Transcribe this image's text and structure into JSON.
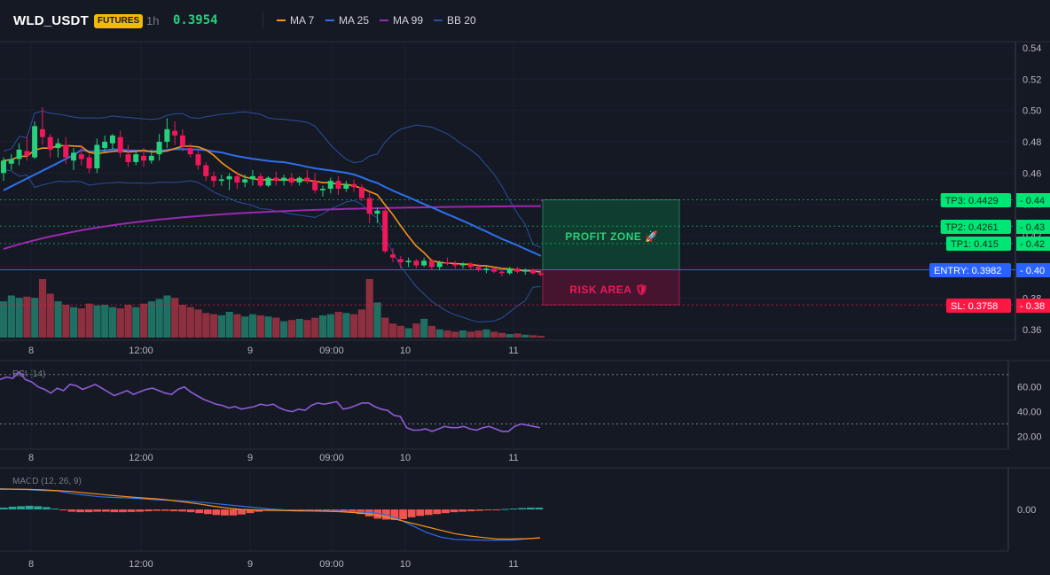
{
  "header": {
    "symbol": "WLD_USDT",
    "badge": "FUTURES",
    "timeframe": "1h",
    "price": "0.3954",
    "legend": [
      {
        "label": "MA 7",
        "color": "#f7931a"
      },
      {
        "label": "MA 25",
        "color": "#2f6fed"
      },
      {
        "label": "MA 99",
        "color": "#9c27b0"
      },
      {
        "label": "BB 20",
        "color": "#2a4e9e"
      }
    ]
  },
  "colors": {
    "up": "#26d07c",
    "down": "#f0185a",
    "vol_up": "#1f6f62",
    "vol_down": "#8e2f3f",
    "rsi": "#8e5bd6",
    "macd_line": "#2f6fed",
    "macd_signal": "#f7931a",
    "tp": "#00e676",
    "entry": "#2962ff",
    "sl": "#ff1744"
  },
  "chart_data": [
    {
      "type": "candlestick",
      "title": "WLD_USDT 1h",
      "x_ticks": [
        "8",
        "12:00",
        "9",
        "09:00",
        "10",
        "11"
      ],
      "y_ticks": [
        "0.54",
        "0.52",
        "0.50",
        "0.48",
        "0.46",
        "0.44",
        "0.42",
        "0.40",
        "0.38",
        "0.36"
      ],
      "ylim": [
        0.355,
        0.544
      ],
      "candles": [
        {
          "o": 0.46,
          "h": 0.47,
          "l": 0.455,
          "c": 0.468
        },
        {
          "o": 0.466,
          "h": 0.472,
          "l": 0.462,
          "c": 0.469
        },
        {
          "o": 0.469,
          "h": 0.479,
          "l": 0.465,
          "c": 0.475
        },
        {
          "o": 0.474,
          "h": 0.483,
          "l": 0.468,
          "c": 0.471
        },
        {
          "o": 0.47,
          "h": 0.493,
          "l": 0.469,
          "c": 0.49
        },
        {
          "o": 0.488,
          "h": 0.502,
          "l": 0.478,
          "c": 0.483
        },
        {
          "o": 0.483,
          "h": 0.485,
          "l": 0.47,
          "c": 0.475
        },
        {
          "o": 0.476,
          "h": 0.482,
          "l": 0.47,
          "c": 0.479
        },
        {
          "o": 0.478,
          "h": 0.483,
          "l": 0.466,
          "c": 0.47
        },
        {
          "o": 0.468,
          "h": 0.476,
          "l": 0.462,
          "c": 0.473
        },
        {
          "o": 0.472,
          "h": 0.478,
          "l": 0.465,
          "c": 0.469
        },
        {
          "o": 0.47,
          "h": 0.472,
          "l": 0.46,
          "c": 0.463
        },
        {
          "o": 0.463,
          "h": 0.482,
          "l": 0.46,
          "c": 0.478
        },
        {
          "o": 0.476,
          "h": 0.484,
          "l": 0.473,
          "c": 0.48
        },
        {
          "o": 0.479,
          "h": 0.485,
          "l": 0.475,
          "c": 0.484
        },
        {
          "o": 0.483,
          "h": 0.487,
          "l": 0.47,
          "c": 0.473
        },
        {
          "o": 0.472,
          "h": 0.478,
          "l": 0.464,
          "c": 0.467
        },
        {
          "o": 0.467,
          "h": 0.474,
          "l": 0.465,
          "c": 0.472
        },
        {
          "o": 0.471,
          "h": 0.476,
          "l": 0.464,
          "c": 0.468
        },
        {
          "o": 0.468,
          "h": 0.475,
          "l": 0.466,
          "c": 0.471
        },
        {
          "o": 0.472,
          "h": 0.485,
          "l": 0.468,
          "c": 0.48
        },
        {
          "o": 0.48,
          "h": 0.495,
          "l": 0.476,
          "c": 0.488
        },
        {
          "o": 0.487,
          "h": 0.493,
          "l": 0.478,
          "c": 0.484
        },
        {
          "o": 0.484,
          "h": 0.488,
          "l": 0.474,
          "c": 0.477
        },
        {
          "o": 0.476,
          "h": 0.479,
          "l": 0.47,
          "c": 0.472
        },
        {
          "o": 0.472,
          "h": 0.475,
          "l": 0.462,
          "c": 0.465
        },
        {
          "o": 0.465,
          "h": 0.467,
          "l": 0.455,
          "c": 0.458
        },
        {
          "o": 0.458,
          "h": 0.461,
          "l": 0.451,
          "c": 0.455
        },
        {
          "o": 0.455,
          "h": 0.459,
          "l": 0.452,
          "c": 0.456
        },
        {
          "o": 0.456,
          "h": 0.46,
          "l": 0.449,
          "c": 0.458
        },
        {
          "o": 0.458,
          "h": 0.461,
          "l": 0.45,
          "c": 0.454
        },
        {
          "o": 0.454,
          "h": 0.459,
          "l": 0.451,
          "c": 0.456
        },
        {
          "o": 0.456,
          "h": 0.462,
          "l": 0.452,
          "c": 0.458
        },
        {
          "o": 0.458,
          "h": 0.46,
          "l": 0.451,
          "c": 0.452
        },
        {
          "o": 0.452,
          "h": 0.458,
          "l": 0.451,
          "c": 0.457
        },
        {
          "o": 0.457,
          "h": 0.461,
          "l": 0.452,
          "c": 0.455
        },
        {
          "o": 0.455,
          "h": 0.459,
          "l": 0.452,
          "c": 0.457
        },
        {
          "o": 0.457,
          "h": 0.46,
          "l": 0.452,
          "c": 0.454
        },
        {
          "o": 0.454,
          "h": 0.458,
          "l": 0.452,
          "c": 0.457
        },
        {
          "o": 0.457,
          "h": 0.462,
          "l": 0.453,
          "c": 0.455
        },
        {
          "o": 0.455,
          "h": 0.46,
          "l": 0.447,
          "c": 0.449
        },
        {
          "o": 0.449,
          "h": 0.452,
          "l": 0.445,
          "c": 0.45
        },
        {
          "o": 0.45,
          "h": 0.457,
          "l": 0.447,
          "c": 0.455
        },
        {
          "o": 0.455,
          "h": 0.458,
          "l": 0.446,
          "c": 0.45
        },
        {
          "o": 0.45,
          "h": 0.455,
          "l": 0.448,
          "c": 0.453
        },
        {
          "o": 0.453,
          "h": 0.456,
          "l": 0.448,
          "c": 0.451
        },
        {
          "o": 0.451,
          "h": 0.453,
          "l": 0.442,
          "c": 0.444
        },
        {
          "o": 0.444,
          "h": 0.448,
          "l": 0.428,
          "c": 0.434
        },
        {
          "o": 0.434,
          "h": 0.438,
          "l": 0.428,
          "c": 0.436
        },
        {
          "o": 0.436,
          "h": 0.437,
          "l": 0.409,
          "c": 0.41
        },
        {
          "o": 0.408,
          "h": 0.412,
          "l": 0.403,
          "c": 0.406
        },
        {
          "o": 0.405,
          "h": 0.407,
          "l": 0.399,
          "c": 0.403
        },
        {
          "o": 0.403,
          "h": 0.406,
          "l": 0.4,
          "c": 0.404
        },
        {
          "o": 0.404,
          "h": 0.405,
          "l": 0.399,
          "c": 0.401
        },
        {
          "o": 0.401,
          "h": 0.406,
          "l": 0.4,
          "c": 0.404
        },
        {
          "o": 0.404,
          "h": 0.405,
          "l": 0.398,
          "c": 0.4
        },
        {
          "o": 0.4,
          "h": 0.404,
          "l": 0.398,
          "c": 0.403
        },
        {
          "o": 0.403,
          "h": 0.406,
          "l": 0.401,
          "c": 0.402
        },
        {
          "o": 0.402,
          "h": 0.404,
          "l": 0.399,
          "c": 0.401
        },
        {
          "o": 0.401,
          "h": 0.403,
          "l": 0.399,
          "c": 0.402
        },
        {
          "o": 0.402,
          "h": 0.403,
          "l": 0.398,
          "c": 0.4
        },
        {
          "o": 0.4,
          "h": 0.402,
          "l": 0.397,
          "c": 0.398
        },
        {
          "o": 0.398,
          "h": 0.4,
          "l": 0.396,
          "c": 0.399
        },
        {
          "o": 0.399,
          "h": 0.4,
          "l": 0.396,
          "c": 0.397
        },
        {
          "o": 0.397,
          "h": 0.399,
          "l": 0.394,
          "c": 0.396
        },
        {
          "o": 0.396,
          "h": 0.4,
          "l": 0.395,
          "c": 0.399
        },
        {
          "o": 0.399,
          "h": 0.4,
          "l": 0.396,
          "c": 0.397
        },
        {
          "o": 0.397,
          "h": 0.399,
          "l": 0.395,
          "c": 0.398
        },
        {
          "o": 0.398,
          "h": 0.399,
          "l": 0.395,
          "c": 0.396
        },
        {
          "o": 0.396,
          "h": 0.398,
          "l": 0.394,
          "c": 0.395
        }
      ],
      "volume": [
        62,
        72,
        68,
        70,
        68,
        100,
        75,
        62,
        56,
        52,
        50,
        58,
        55,
        56,
        52,
        50,
        56,
        52,
        58,
        62,
        66,
        72,
        68,
        56,
        52,
        48,
        42,
        40,
        38,
        44,
        40,
        36,
        40,
        38,
        36,
        34,
        28,
        30,
        32,
        30,
        34,
        38,
        40,
        44,
        42,
        40,
        48,
        100,
        60,
        34,
        24,
        20,
        16,
        24,
        32,
        20,
        14,
        12,
        10,
        12,
        10,
        12,
        14,
        10,
        8,
        6,
        7,
        5,
        4,
        3
      ]
    },
    {
      "type": "line",
      "title": "RSI (14)",
      "y_ticks": [
        "60.00",
        "40.00",
        "20.00"
      ],
      "ylim": [
        10,
        80
      ],
      "levels": [
        70,
        30
      ],
      "values": [
        66,
        68,
        67,
        72,
        66,
        64,
        60,
        58,
        55,
        59,
        57,
        62,
        61,
        58,
        60,
        62,
        59,
        56,
        53,
        55,
        57,
        54,
        56,
        58,
        59,
        57,
        55,
        54,
        58,
        60,
        56,
        53,
        50,
        48,
        46,
        45,
        43,
        44,
        42,
        43,
        44,
        46,
        45,
        46,
        43,
        41,
        40,
        42,
        41,
        45,
        47,
        46,
        47,
        48,
        42,
        43,
        45,
        47,
        47,
        44,
        42,
        41,
        37,
        36,
        27,
        25,
        25,
        26,
        24,
        26,
        28,
        27,
        27,
        28,
        26,
        25,
        27,
        28,
        26,
        24,
        24,
        28,
        30,
        29,
        28,
        27
      ]
    },
    {
      "type": "bar",
      "title": "MACD (12, 26, 9)",
      "y_ticks": [
        "0.00"
      ],
      "ylim": [
        -0.024,
        0.018
      ],
      "histogram": [
        0.0008,
        0.0012,
        0.0014,
        0.0016,
        0.0014,
        0.001,
        0.0004,
        -0.0004,
        -0.001,
        -0.0012,
        -0.0012,
        -0.001,
        -0.001,
        -0.0012,
        -0.0012,
        -0.0011,
        -0.001,
        -0.0008,
        -0.0006,
        -0.0006,
        -0.0008,
        -0.0009,
        -0.0012,
        -0.0016,
        -0.002,
        -0.0024,
        -0.0026,
        -0.0026,
        -0.0022,
        -0.0016,
        -0.001,
        -0.0006,
        -0.0004,
        -0.0002,
        -0.0003,
        -0.0004,
        -0.0006,
        -0.0005,
        -0.0004,
        -0.0005,
        -0.0008,
        -0.0012,
        -0.002,
        -0.003,
        -0.004,
        -0.0044,
        -0.0046,
        -0.0042,
        -0.0034,
        -0.0028,
        -0.0024,
        -0.002,
        -0.0016,
        -0.0012,
        -0.001,
        -0.0008,
        -0.0006,
        -0.0004,
        -0.0003,
        0.0002,
        0.0004,
        0.0006,
        0.0008,
        0.0008
      ],
      "macd": [
        0.009,
        0.0088,
        0.0086,
        0.0082,
        0.008,
        0.007,
        0.0062,
        0.0055,
        0.0052,
        0.005,
        0.0046,
        0.0042,
        0.004,
        0.0036,
        0.0032,
        0.0026,
        0.002,
        0.0014,
        0.0008,
        0.0002,
        -0.0002,
        -0.0004,
        -0.0005,
        -0.0006,
        -0.0008,
        -0.001,
        -0.0012,
        -0.002,
        -0.004,
        -0.007,
        -0.01,
        -0.012,
        -0.013,
        -0.0132,
        -0.0133,
        -0.0133,
        -0.0133,
        -0.0128,
        -0.0122
      ],
      "signal": [
        0.0088,
        0.0088,
        0.0087,
        0.0085,
        0.0082,
        0.0078,
        0.0072,
        0.0066,
        0.006,
        0.0055,
        0.005,
        0.0046,
        0.004,
        0.0032,
        0.0024,
        0.0014,
        0.0006,
        0.0,
        -0.0002,
        -0.0004,
        -0.0005,
        -0.0006,
        -0.0007,
        -0.0008,
        -0.001,
        -0.0014,
        -0.002,
        -0.003,
        -0.0045,
        -0.006,
        -0.0075,
        -0.009,
        -0.0105,
        -0.0115,
        -0.0122,
        -0.0128,
        -0.0128,
        -0.0127,
        -0.0124
      ]
    }
  ],
  "trade": {
    "profit_label": "PROFIT ZONE 🚀",
    "risk_label": "RISK AREA 🛡",
    "tp3": {
      "label": "TP3: 0.4429",
      "value": 0.4429,
      "axis": "0.44"
    },
    "tp2": {
      "label": "TP2: 0.4261",
      "value": 0.4261,
      "axis": "0.43"
    },
    "tp1": {
      "label": "TP1: 0.415",
      "value": 0.415,
      "axis": "0.42"
    },
    "entry": {
      "label": "ENTRY: 0.3982",
      "value": 0.3982,
      "axis": "0.40"
    },
    "sl": {
      "label": "SL: 0.3758",
      "value": 0.3758,
      "axis": "0.38"
    }
  }
}
